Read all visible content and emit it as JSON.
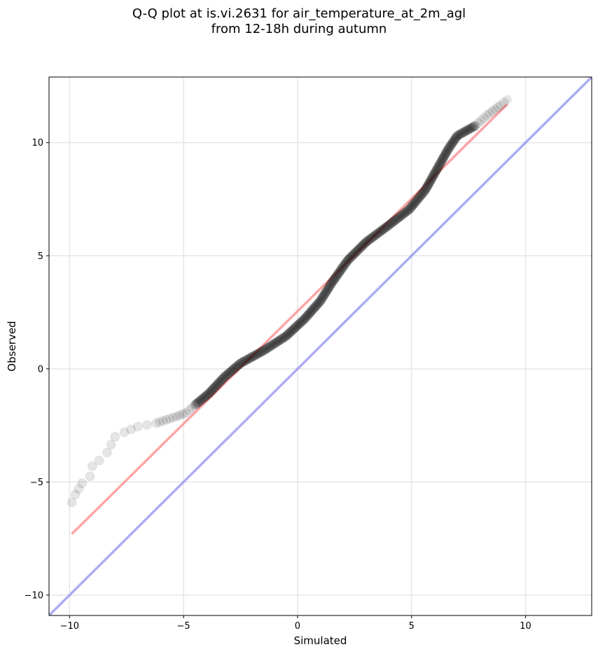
{
  "title": {
    "line1": "Q-Q plot at is.vi.2631 for air_temperature_at_2m_agl",
    "line2": "from 12-18h during autumn"
  },
  "chart_data": {
    "type": "scatter",
    "title": "Q-Q plot at is.vi.2631 for air_temperature_at_2m_agl from 12-18h during autumn",
    "xlabel": "Simulated",
    "ylabel": "Observed",
    "xlim": [
      -10.9,
      12.9
    ],
    "ylim": [
      -10.9,
      12.9
    ],
    "xticks": [
      -10,
      -5,
      0,
      5,
      10
    ],
    "yticks": [
      -10,
      -5,
      0,
      5,
      10
    ],
    "xtick_labels": [
      "−10",
      "−5",
      "0",
      "5",
      "10"
    ],
    "ytick_labels": [
      "−10",
      "−5",
      "0",
      "5",
      "10"
    ],
    "grid": true,
    "colors": {
      "points": "#000000",
      "fit_line": "#ff7f7f",
      "identity_line": "#7f7ff0",
      "grid": "#e6e6e6"
    },
    "quantile_anchors": [
      [
        -9.9,
        -5.9
      ],
      [
        -9.75,
        -5.55
      ],
      [
        -9.45,
        -5.05
      ],
      [
        -9.1,
        -4.75
      ],
      [
        -9.0,
        -4.3
      ],
      [
        -8.7,
        -4.05
      ],
      [
        -8.35,
        -3.7
      ],
      [
        -8.0,
        -3.0
      ],
      [
        -7.6,
        -2.8
      ],
      [
        -7.0,
        -2.55
      ],
      [
        -6.2,
        -2.4
      ],
      [
        -5.3,
        -2.1
      ],
      [
        -4.9,
        -1.95
      ],
      [
        -4.5,
        -1.6
      ],
      [
        -3.9,
        -1.1
      ],
      [
        -3.2,
        -0.35
      ],
      [
        -2.5,
        0.25
      ],
      [
        -1.5,
        0.8
      ],
      [
        -0.5,
        1.45
      ],
      [
        0.3,
        2.2
      ],
      [
        1.0,
        3.0
      ],
      [
        1.5,
        3.8
      ],
      [
        2.2,
        4.8
      ],
      [
        3.0,
        5.6
      ],
      [
        4.0,
        6.35
      ],
      [
        4.9,
        7.05
      ],
      [
        5.6,
        7.9
      ],
      [
        6.1,
        8.8
      ],
      [
        6.6,
        9.7
      ],
      [
        7.0,
        10.3
      ],
      [
        7.8,
        10.75
      ],
      [
        8.3,
        11.2
      ],
      [
        8.9,
        11.65
      ],
      [
        9.2,
        11.9
      ]
    ],
    "reference_lines": [
      {
        "role": "fit",
        "points": [
          [
            -9.9,
            -7.3
          ],
          [
            9.2,
            11.7
          ]
        ]
      },
      {
        "role": "identity",
        "points": [
          [
            -10.9,
            -10.9
          ],
          [
            12.9,
            12.9
          ]
        ]
      }
    ]
  }
}
